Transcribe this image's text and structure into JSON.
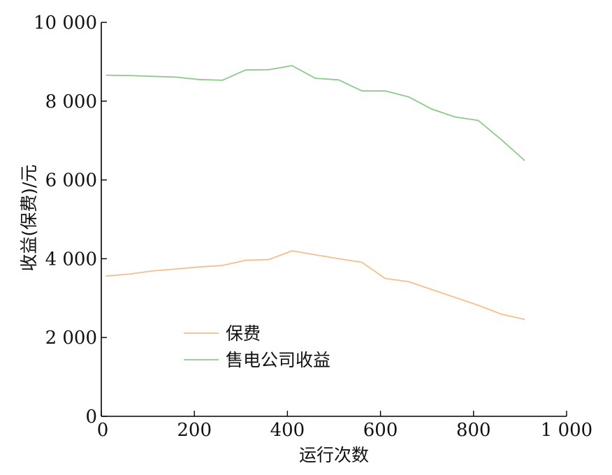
{
  "chart_data": {
    "type": "line",
    "xlabel": "运行次数",
    "ylabel": "收益(保费)/元",
    "xlim": [
      0,
      1000
    ],
    "ylim": [
      0,
      10000
    ],
    "x_ticks": [
      0,
      200,
      400,
      600,
      800,
      1000
    ],
    "x_tick_labels": [
      "0",
      "200",
      "400",
      "600",
      "800",
      "1 000"
    ],
    "y_ticks": [
      0,
      2000,
      4000,
      6000,
      8000,
      10000
    ],
    "y_tick_labels": [
      "0",
      "2 000",
      "4 000",
      "6 000",
      "8 000",
      "10 000"
    ],
    "grid": false,
    "legend_position": "bottom-left",
    "series": [
      {
        "name": "保费",
        "color": "#f5be8c",
        "points": [
          [
            10,
            3560
          ],
          [
            60,
            3610
          ],
          [
            110,
            3690
          ],
          [
            160,
            3740
          ],
          [
            210,
            3790
          ],
          [
            260,
            3830
          ],
          [
            310,
            3960
          ],
          [
            360,
            3980
          ],
          [
            410,
            4200
          ],
          [
            460,
            4100
          ],
          [
            510,
            4000
          ],
          [
            560,
            3910
          ],
          [
            610,
            3500
          ],
          [
            660,
            3420
          ],
          [
            710,
            3220
          ],
          [
            760,
            3020
          ],
          [
            810,
            2820
          ],
          [
            860,
            2590
          ],
          [
            910,
            2460
          ]
        ]
      },
      {
        "name": "售电公司收益",
        "color": "#8ec98c",
        "points": [
          [
            10,
            8660
          ],
          [
            60,
            8650
          ],
          [
            110,
            8630
          ],
          [
            160,
            8610
          ],
          [
            210,
            8550
          ],
          [
            260,
            8530
          ],
          [
            310,
            8790
          ],
          [
            360,
            8800
          ],
          [
            410,
            8900
          ],
          [
            460,
            8580
          ],
          [
            510,
            8540
          ],
          [
            560,
            8260
          ],
          [
            610,
            8260
          ],
          [
            660,
            8110
          ],
          [
            710,
            7800
          ],
          [
            760,
            7600
          ],
          [
            810,
            7510
          ],
          [
            860,
            7020
          ],
          [
            910,
            6490
          ]
        ]
      }
    ]
  }
}
